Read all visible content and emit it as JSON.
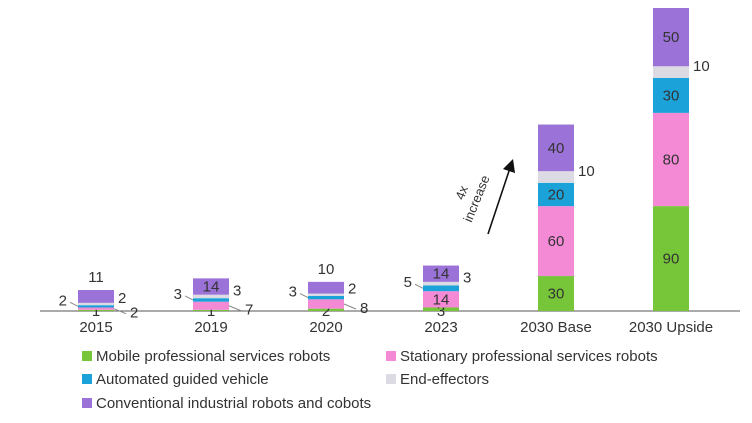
{
  "chart_data": {
    "type": "stacked_bar",
    "categories": [
      "2015",
      "2019",
      "2020",
      "2023",
      "2030 Base",
      "2030 Upside"
    ],
    "series": [
      {
        "name": "Mobile professional services robots",
        "color": "#77c63a",
        "values": [
          1,
          1,
          2,
          3,
          30,
          90
        ]
      },
      {
        "name": "Stationary professional services robots",
        "color": "#f48ad6",
        "values": [
          2,
          7,
          8,
          14,
          60,
          80
        ]
      },
      {
        "name": "Automated guided vehicle",
        "color": "#1ba3d9",
        "values": [
          2,
          3,
          3,
          5,
          20,
          30
        ]
      },
      {
        "name": "End-effectors",
        "color": "#dcdbe3",
        "values": [
          2,
          3,
          2,
          3,
          10,
          10
        ]
      },
      {
        "name": "Conventional industrial robots and cobots",
        "color": "#9b72d8",
        "values": [
          11,
          14,
          10,
          14,
          40,
          50
        ]
      }
    ],
    "annotation": [
      "4x",
      "increase"
    ]
  }
}
